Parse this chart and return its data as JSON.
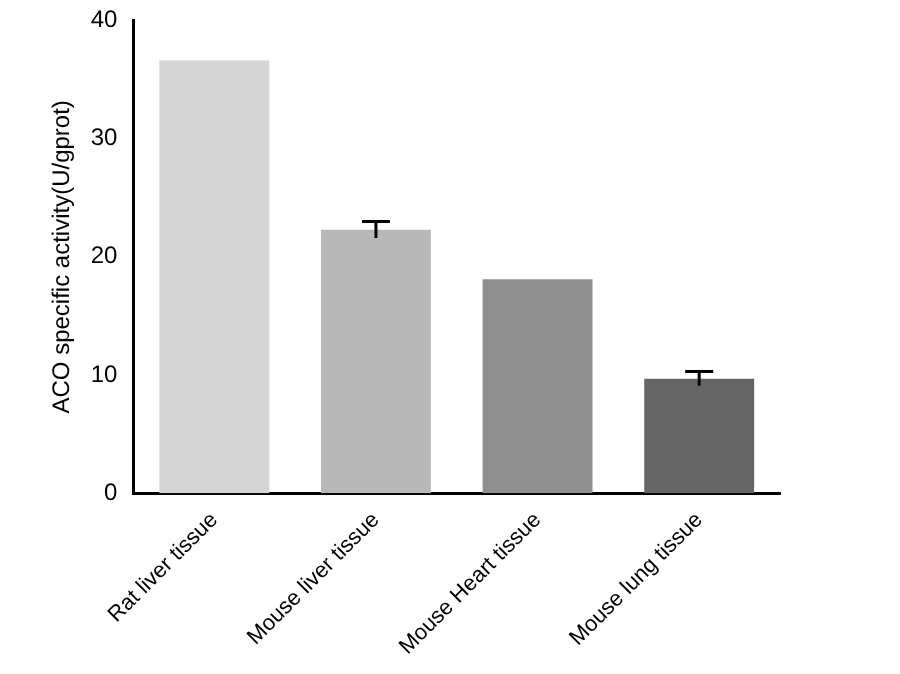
{
  "chart_data": {
    "type": "bar",
    "ylabel": "ACO specific activity(U/gprot)",
    "categories": [
      "Rat liver tissue",
      "Mouse liver tissue",
      "Mouse Heart tissue",
      "Mouse lung tissue"
    ],
    "values": [
      36.6,
      22.3,
      18.1,
      9.7
    ],
    "errors": [
      null,
      0.7,
      null,
      0.6
    ],
    "colors": [
      "#d4d4d4",
      "#b8b8b8",
      "#8f8f8f",
      "#666666"
    ],
    "ylim": [
      0,
      40
    ],
    "yticks": [
      0,
      10,
      20,
      30,
      40
    ],
    "grid": false,
    "legend": false
  }
}
